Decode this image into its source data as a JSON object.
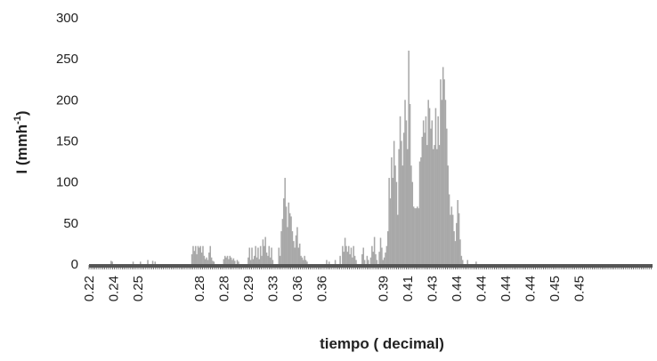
{
  "chart_data": {
    "type": "bar",
    "xlabel": "tiempo ( decimal)",
    "ylabel": "I (mmh-1)",
    "ylabel_parts": {
      "base": "I (mmh",
      "sup": "-1",
      "close": ")"
    },
    "ylim": [
      0,
      300
    ],
    "yticks": [
      0,
      50,
      100,
      150,
      200,
      250,
      300
    ],
    "xlim": [
      0.22,
      0.45
    ],
    "xtick_labels": [
      {
        "x": 0.22,
        "label": "0.22"
      },
      {
        "x": 0.23,
        "label": "0.24"
      },
      {
        "x": 0.24,
        "label": "0.25"
      },
      {
        "x": 0.265,
        "label": "0.28"
      },
      {
        "x": 0.275,
        "label": "0.28"
      },
      {
        "x": 0.285,
        "label": "0.29"
      },
      {
        "x": 0.295,
        "label": "0.33"
      },
      {
        "x": 0.305,
        "label": "0.36"
      },
      {
        "x": 0.315,
        "label": "0.36"
      },
      {
        "x": 0.34,
        "label": "0.39"
      },
      {
        "x": 0.35,
        "label": "0.41"
      },
      {
        "x": 0.36,
        "label": "0.43"
      },
      {
        "x": 0.37,
        "label": "0.44"
      },
      {
        "x": 0.38,
        "label": "0.44"
      },
      {
        "x": 0.39,
        "label": "0.44"
      },
      {
        "x": 0.4,
        "label": "0.44"
      },
      {
        "x": 0.41,
        "label": "0.45"
      },
      {
        "x": 0.42,
        "label": "0.45"
      }
    ],
    "bar_width": 0.00056,
    "bar_color": "#a8a8a8",
    "axis_color": "#555555",
    "grid": false,
    "legend": "none",
    "series": [
      {
        "points": [
          [
            0.229,
            4
          ],
          [
            0.2295,
            3
          ],
          [
            0.238,
            3
          ],
          [
            0.241,
            3
          ],
          [
            0.244,
            5
          ],
          [
            0.246,
            4
          ],
          [
            0.247,
            3
          ],
          [
            0.262,
            12
          ],
          [
            0.2625,
            22
          ],
          [
            0.263,
            16
          ],
          [
            0.2635,
            22
          ],
          [
            0.264,
            12
          ],
          [
            0.2645,
            22
          ],
          [
            0.265,
            20
          ],
          [
            0.2655,
            22
          ],
          [
            0.266,
            14
          ],
          [
            0.2665,
            22
          ],
          [
            0.267,
            10
          ],
          [
            0.2675,
            6
          ],
          [
            0.268,
            8
          ],
          [
            0.2685,
            5
          ],
          [
            0.269,
            14
          ],
          [
            0.2695,
            22
          ],
          [
            0.27,
            8
          ],
          [
            0.2705,
            4
          ],
          [
            0.271,
            3
          ],
          [
            0.275,
            6
          ],
          [
            0.2755,
            10
          ],
          [
            0.276,
            8
          ],
          [
            0.2765,
            10
          ],
          [
            0.277,
            6
          ],
          [
            0.2775,
            10
          ],
          [
            0.278,
            8
          ],
          [
            0.2785,
            5
          ],
          [
            0.279,
            7
          ],
          [
            0.2795,
            4
          ],
          [
            0.2805,
            5
          ],
          [
            0.281,
            3
          ],
          [
            0.285,
            8
          ],
          [
            0.2855,
            20
          ],
          [
            0.286,
            5
          ],
          [
            0.2865,
            20
          ],
          [
            0.287,
            6
          ],
          [
            0.2875,
            10
          ],
          [
            0.288,
            22
          ],
          [
            0.2885,
            8
          ],
          [
            0.289,
            20
          ],
          [
            0.2895,
            6
          ],
          [
            0.29,
            22
          ],
          [
            0.2905,
            10
          ],
          [
            0.291,
            30
          ],
          [
            0.2915,
            22
          ],
          [
            0.292,
            33
          ],
          [
            0.2925,
            14
          ],
          [
            0.293,
            10
          ],
          [
            0.2935,
            22
          ],
          [
            0.294,
            8
          ],
          [
            0.2945,
            20
          ],
          [
            0.295,
            5
          ],
          [
            0.2975,
            20
          ],
          [
            0.298,
            10
          ],
          [
            0.2985,
            40
          ],
          [
            0.299,
            55
          ],
          [
            0.2995,
            80
          ],
          [
            0.3,
            105
          ],
          [
            0.3005,
            70
          ],
          [
            0.301,
            45
          ],
          [
            0.3015,
            75
          ],
          [
            0.302,
            62
          ],
          [
            0.3025,
            58
          ],
          [
            0.303,
            40
          ],
          [
            0.3035,
            28
          ],
          [
            0.304,
            20
          ],
          [
            0.3045,
            35
          ],
          [
            0.305,
            45
          ],
          [
            0.3055,
            20
          ],
          [
            0.306,
            25
          ],
          [
            0.3065,
            10
          ],
          [
            0.307,
            8
          ],
          [
            0.3075,
            5
          ],
          [
            0.308,
            10
          ],
          [
            0.3085,
            5
          ],
          [
            0.309,
            3
          ],
          [
            0.317,
            5
          ],
          [
            0.318,
            3
          ],
          [
            0.3205,
            5
          ],
          [
            0.3225,
            10
          ],
          [
            0.3235,
            22
          ],
          [
            0.324,
            15
          ],
          [
            0.3245,
            32
          ],
          [
            0.325,
            22
          ],
          [
            0.3255,
            15
          ],
          [
            0.326,
            22
          ],
          [
            0.3265,
            12
          ],
          [
            0.327,
            20
          ],
          [
            0.3275,
            8
          ],
          [
            0.328,
            22
          ],
          [
            0.3285,
            10
          ],
          [
            0.329,
            5
          ],
          [
            0.3315,
            12
          ],
          [
            0.332,
            20
          ],
          [
            0.3325,
            5
          ],
          [
            0.3335,
            10
          ],
          [
            0.334,
            5
          ],
          [
            0.335,
            8
          ],
          [
            0.3355,
            22
          ],
          [
            0.336,
            15
          ],
          [
            0.3365,
            33
          ],
          [
            0.337,
            12
          ],
          [
            0.3375,
            5
          ],
          [
            0.3385,
            15
          ],
          [
            0.339,
            32
          ],
          [
            0.3395,
            20
          ],
          [
            0.34,
            5
          ],
          [
            0.3405,
            8
          ],
          [
            0.341,
            14
          ],
          [
            0.3415,
            22
          ],
          [
            0.342,
            40
          ],
          [
            0.3425,
            105
          ],
          [
            0.343,
            80
          ],
          [
            0.3435,
            130
          ],
          [
            0.344,
            105
          ],
          [
            0.3445,
            150
          ],
          [
            0.345,
            120
          ],
          [
            0.3455,
            100
          ],
          [
            0.346,
            60
          ],
          [
            0.3465,
            140
          ],
          [
            0.347,
            180
          ],
          [
            0.3475,
            150
          ],
          [
            0.348,
            120
          ],
          [
            0.3485,
            160
          ],
          [
            0.349,
            200
          ],
          [
            0.3495,
            175
          ],
          [
            0.35,
            140
          ],
          [
            0.3505,
            260
          ],
          [
            0.351,
            195
          ],
          [
            0.3515,
            120
          ],
          [
            0.352,
            100
          ],
          [
            0.3525,
            70
          ],
          [
            0.353,
            68
          ],
          [
            0.3535,
            68
          ],
          [
            0.354,
            70
          ],
          [
            0.3545,
            68
          ],
          [
            0.355,
            125
          ],
          [
            0.3555,
            130
          ],
          [
            0.356,
            155
          ],
          [
            0.3565,
            175
          ],
          [
            0.357,
            160
          ],
          [
            0.3575,
            180
          ],
          [
            0.358,
            145
          ],
          [
            0.3585,
            200
          ],
          [
            0.359,
            190
          ],
          [
            0.3595,
            165
          ],
          [
            0.36,
            175
          ],
          [
            0.3605,
            140
          ],
          [
            0.361,
            145
          ],
          [
            0.3615,
            190
          ],
          [
            0.362,
            140
          ],
          [
            0.3625,
            180
          ],
          [
            0.363,
            145
          ],
          [
            0.3635,
            225
          ],
          [
            0.364,
            200
          ],
          [
            0.3645,
            240
          ],
          [
            0.365,
            225
          ],
          [
            0.3655,
            200
          ],
          [
            0.366,
            165
          ],
          [
            0.3665,
            120
          ],
          [
            0.367,
            85
          ],
          [
            0.3675,
            60
          ],
          [
            0.368,
            70
          ],
          [
            0.3685,
            60
          ],
          [
            0.369,
            40
          ],
          [
            0.3695,
            28
          ],
          [
            0.37,
            50
          ],
          [
            0.3705,
            78
          ],
          [
            0.371,
            62
          ],
          [
            0.3715,
            30
          ],
          [
            0.372,
            10
          ],
          [
            0.3725,
            5
          ],
          [
            0.3745,
            5
          ],
          [
            0.378,
            3
          ]
        ]
      }
    ]
  }
}
